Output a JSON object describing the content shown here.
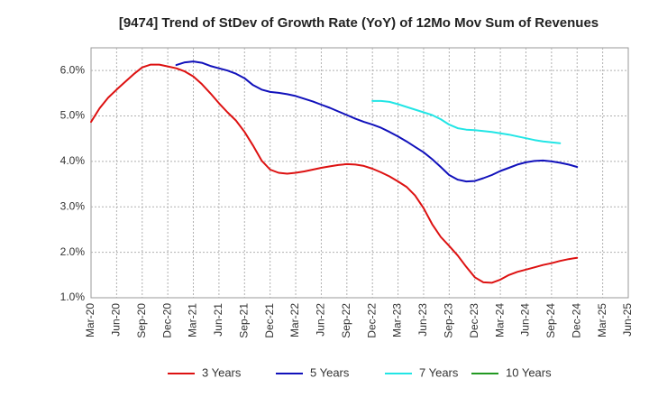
{
  "chart_data": {
    "type": "line",
    "title": "[9474]  Trend of StDev of Growth Rate (YoY) of 12Mo Mov Sum of Revenues",
    "xlabel": "",
    "ylabel": "",
    "ylim": [
      1.0,
      6.5
    ],
    "y_ticks": [
      1.0,
      2.0,
      3.0,
      4.0,
      5.0,
      6.0
    ],
    "y_tick_labels": [
      "1.0%",
      "2.0%",
      "3.0%",
      "4.0%",
      "5.0%",
      "6.0%"
    ],
    "x_tick_labels": [
      "Mar-20",
      "Jun-20",
      "Sep-20",
      "Dec-20",
      "Mar-21",
      "Jun-21",
      "Sep-21",
      "Dec-21",
      "Mar-22",
      "Jun-22",
      "Sep-22",
      "Dec-22",
      "Mar-23",
      "Jun-23",
      "Sep-23",
      "Dec-23",
      "Mar-24",
      "Jun-24",
      "Sep-24",
      "Dec-24",
      "Mar-25",
      "Jun-25"
    ],
    "grid": true,
    "legend_position": "bottom",
    "series": [
      {
        "name": "3 Years",
        "color": "#dd1111",
        "start_index": 0,
        "values": [
          4.87,
          5.17,
          5.4,
          5.58,
          5.75,
          5.92,
          6.07,
          6.13,
          6.13,
          6.09,
          6.05,
          5.98,
          5.87,
          5.7,
          5.5,
          5.28,
          5.08,
          4.9,
          4.65,
          4.35,
          4.02,
          3.82,
          3.75,
          3.73,
          3.75,
          3.78,
          3.82,
          3.86,
          3.89,
          3.92,
          3.94,
          3.93,
          3.9,
          3.84,
          3.76,
          3.67,
          3.56,
          3.44,
          3.25,
          2.97,
          2.62,
          2.34,
          2.14,
          1.93,
          1.68,
          1.45,
          1.34,
          1.33,
          1.4,
          1.5,
          1.57,
          1.62,
          1.67,
          1.72,
          1.76,
          1.81,
          1.85,
          1.88
        ]
      },
      {
        "name": "5 Years",
        "color": "#1111bb",
        "start_index": 10,
        "values": [
          6.12,
          6.18,
          6.2,
          6.17,
          6.1,
          6.05,
          6.0,
          5.93,
          5.83,
          5.68,
          5.58,
          5.53,
          5.51,
          5.48,
          5.44,
          5.38,
          5.32,
          5.25,
          5.18,
          5.1,
          5.02,
          4.94,
          4.87,
          4.81,
          4.74,
          4.65,
          4.55,
          4.44,
          4.32,
          4.2,
          4.05,
          3.88,
          3.7,
          3.6,
          3.56,
          3.57,
          3.63,
          3.7,
          3.79,
          3.86,
          3.93,
          3.98,
          4.01,
          4.02,
          4.0,
          3.97,
          3.93,
          3.88
        ]
      },
      {
        "name": "7 Years",
        "color": "#22e5e5",
        "start_index": 33,
        "values": [
          5.33,
          5.33,
          5.31,
          5.26,
          5.2,
          5.14,
          5.08,
          5.02,
          4.93,
          4.81,
          4.73,
          4.7,
          4.69,
          4.67,
          4.65,
          4.62,
          4.59,
          4.55,
          4.51,
          4.47,
          4.44,
          4.42,
          4.4
        ]
      },
      {
        "name": "10 Years",
        "color": "#229922",
        "start_index": 0,
        "values": []
      }
    ]
  }
}
